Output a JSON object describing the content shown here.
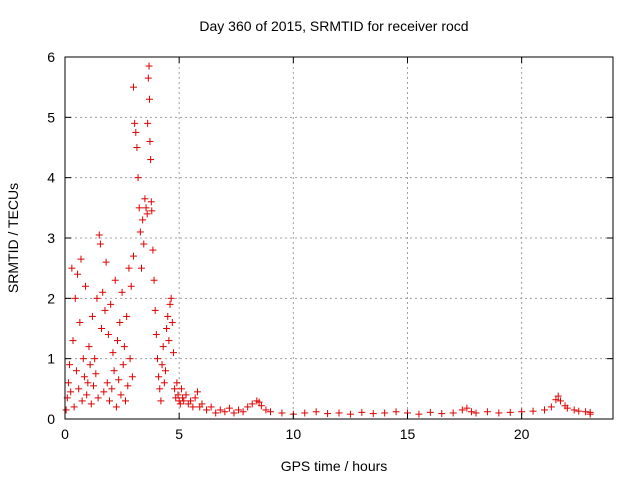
{
  "chart_data": {
    "type": "scatter",
    "title": "Day 360 of 2015, SRMTID for receiver rocd",
    "xlabel": "GPS time / hours",
    "ylabel": "SRMTID / TECUs",
    "xlim": [
      0,
      24
    ],
    "ylim": [
      0,
      6
    ],
    "xticks": [
      0,
      5,
      10,
      15,
      20
    ],
    "yticks": [
      0,
      1,
      2,
      3,
      4,
      5,
      6
    ],
    "xtick_labels": [
      "0",
      "5",
      "10",
      "15",
      "20"
    ],
    "ytick_labels": [
      "0",
      "1",
      "2",
      "3",
      "4",
      "5",
      "6"
    ],
    "grid": true,
    "marker": "+",
    "marker_color": "#e00000",
    "series": [
      {
        "name": "SRMTID",
        "points": [
          [
            0.05,
            0.15
          ],
          [
            0.1,
            0.35
          ],
          [
            0.15,
            0.6
          ],
          [
            0.2,
            0.9
          ],
          [
            0.25,
            0.45
          ],
          [
            0.3,
            2.5
          ],
          [
            0.35,
            1.3
          ],
          [
            0.4,
            0.2
          ],
          [
            0.45,
            2.0
          ],
          [
            0.5,
            0.8
          ],
          [
            0.55,
            2.4
          ],
          [
            0.6,
            0.5
          ],
          [
            0.65,
            1.6
          ],
          [
            0.7,
            2.65
          ],
          [
            0.75,
            0.3
          ],
          [
            0.8,
            1.0
          ],
          [
            0.85,
            0.7
          ],
          [
            0.9,
            2.2
          ],
          [
            0.95,
            0.4
          ],
          [
            1.0,
            0.6
          ],
          [
            1.05,
            1.2
          ],
          [
            1.1,
            0.9
          ],
          [
            1.15,
            0.25
          ],
          [
            1.2,
            1.7
          ],
          [
            1.25,
            0.55
          ],
          [
            1.3,
            1.0
          ],
          [
            1.35,
            0.75
          ],
          [
            1.4,
            2.0
          ],
          [
            1.45,
            0.35
          ],
          [
            1.5,
            3.05
          ],
          [
            1.55,
            2.9
          ],
          [
            1.6,
            1.5
          ],
          [
            1.65,
            2.1
          ],
          [
            1.7,
            0.45
          ],
          [
            1.75,
            1.8
          ],
          [
            1.8,
            2.6
          ],
          [
            1.85,
            0.6
          ],
          [
            1.9,
            1.4
          ],
          [
            1.95,
            0.3
          ],
          [
            2.0,
            1.9
          ],
          [
            2.05,
            0.5
          ],
          [
            2.1,
            1.1
          ],
          [
            2.15,
            0.8
          ],
          [
            2.2,
            2.3
          ],
          [
            2.25,
            0.2
          ],
          [
            2.3,
            1.3
          ],
          [
            2.35,
            0.65
          ],
          [
            2.4,
            1.6
          ],
          [
            2.45,
            0.4
          ],
          [
            2.5,
            2.1
          ],
          [
            2.55,
            0.9
          ],
          [
            2.6,
            1.2
          ],
          [
            2.65,
            0.3
          ],
          [
            2.7,
            1.7
          ],
          [
            2.75,
            0.55
          ],
          [
            2.8,
            2.5
          ],
          [
            2.85,
            1.0
          ],
          [
            2.9,
            2.2
          ],
          [
            2.95,
            0.7
          ],
          [
            3.0,
            2.7
          ],
          [
            3.0,
            5.5
          ],
          [
            3.05,
            4.9
          ],
          [
            3.1,
            4.75
          ],
          [
            3.15,
            4.5
          ],
          [
            3.2,
            4.0
          ],
          [
            3.25,
            3.5
          ],
          [
            3.3,
            3.1
          ],
          [
            3.35,
            2.5
          ],
          [
            3.4,
            3.3
          ],
          [
            3.45,
            2.9
          ],
          [
            3.5,
            3.65
          ],
          [
            3.55,
            3.5
          ],
          [
            3.6,
            3.4
          ],
          [
            3.62,
            4.9
          ],
          [
            3.65,
            5.65
          ],
          [
            3.68,
            5.85
          ],
          [
            3.7,
            5.3
          ],
          [
            3.72,
            4.6
          ],
          [
            3.75,
            4.3
          ],
          [
            3.78,
            3.6
          ],
          [
            3.8,
            3.45
          ],
          [
            3.85,
            2.8
          ],
          [
            3.9,
            2.3
          ],
          [
            3.95,
            1.8
          ],
          [
            4.0,
            1.4
          ],
          [
            4.05,
            1.0
          ],
          [
            4.1,
            0.7
          ],
          [
            4.15,
            0.5
          ],
          [
            4.2,
            0.3
          ],
          [
            4.25,
            0.9
          ],
          [
            4.3,
            1.2
          ],
          [
            4.35,
            0.6
          ],
          [
            4.4,
            0.8
          ],
          [
            4.45,
            1.5
          ],
          [
            4.5,
            1.7
          ],
          [
            4.55,
            1.3
          ],
          [
            4.6,
            1.9
          ],
          [
            4.65,
            2.0
          ],
          [
            4.7,
            1.6
          ],
          [
            4.75,
            1.1
          ],
          [
            4.8,
            0.5
          ],
          [
            4.85,
            0.35
          ],
          [
            4.9,
            0.6
          ],
          [
            4.95,
            0.4
          ],
          [
            5.0,
            0.3
          ],
          [
            5.05,
            0.25
          ],
          [
            5.1,
            0.5
          ],
          [
            5.15,
            0.35
          ],
          [
            5.2,
            0.3
          ],
          [
            5.3,
            0.4
          ],
          [
            5.4,
            0.25
          ],
          [
            5.5,
            0.3
          ],
          [
            5.6,
            0.2
          ],
          [
            5.7,
            0.35
          ],
          [
            5.8,
            0.45
          ],
          [
            5.9,
            0.2
          ],
          [
            6.0,
            0.25
          ],
          [
            6.2,
            0.15
          ],
          [
            6.4,
            0.2
          ],
          [
            6.6,
            0.1
          ],
          [
            6.8,
            0.15
          ],
          [
            7.0,
            0.12
          ],
          [
            7.2,
            0.18
          ],
          [
            7.4,
            0.1
          ],
          [
            7.6,
            0.15
          ],
          [
            7.8,
            0.12
          ],
          [
            8.0,
            0.2
          ],
          [
            8.2,
            0.25
          ],
          [
            8.4,
            0.3
          ],
          [
            8.5,
            0.28
          ],
          [
            8.6,
            0.22
          ],
          [
            8.8,
            0.15
          ],
          [
            9.0,
            0.12
          ],
          [
            9.5,
            0.1
          ],
          [
            10.0,
            0.08
          ],
          [
            10.5,
            0.1
          ],
          [
            11.0,
            0.12
          ],
          [
            11.5,
            0.09
          ],
          [
            12.0,
            0.1
          ],
          [
            12.5,
            0.08
          ],
          [
            13.0,
            0.11
          ],
          [
            13.5,
            0.09
          ],
          [
            14.0,
            0.1
          ],
          [
            14.5,
            0.12
          ],
          [
            15.0,
            0.1
          ],
          [
            15.5,
            0.08
          ],
          [
            16.0,
            0.11
          ],
          [
            16.5,
            0.09
          ],
          [
            17.0,
            0.1
          ],
          [
            17.4,
            0.15
          ],
          [
            17.6,
            0.18
          ],
          [
            17.8,
            0.12
          ],
          [
            18.0,
            0.1
          ],
          [
            18.5,
            0.12
          ],
          [
            19.0,
            0.1
          ],
          [
            19.5,
            0.11
          ],
          [
            20.0,
            0.12
          ],
          [
            20.5,
            0.13
          ],
          [
            21.0,
            0.15
          ],
          [
            21.3,
            0.2
          ],
          [
            21.5,
            0.32
          ],
          [
            21.6,
            0.38
          ],
          [
            21.7,
            0.3
          ],
          [
            21.9,
            0.22
          ],
          [
            22.0,
            0.18
          ],
          [
            22.3,
            0.15
          ],
          [
            22.5,
            0.13
          ],
          [
            22.8,
            0.12
          ],
          [
            23.0,
            0.11
          ],
          [
            23.0,
            0.08
          ]
        ]
      }
    ]
  }
}
